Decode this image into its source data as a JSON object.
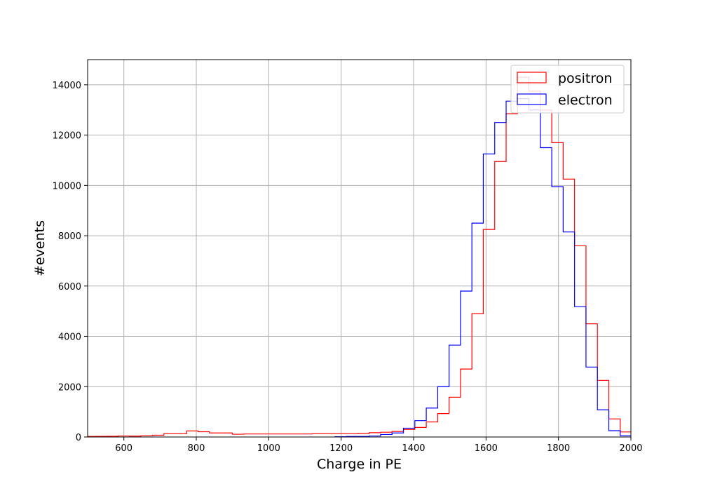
{
  "chart_data": {
    "type": "histogram",
    "title": "",
    "xlabel": "Charge in PE",
    "ylabel": "#events",
    "xlim": [
      500,
      2000
    ],
    "ylim": [
      0,
      15000
    ],
    "grid": true,
    "legend_position": "top-right",
    "x_ticks": [
      600,
      800,
      1000,
      1200,
      1400,
      1600,
      1800,
      2000
    ],
    "y_ticks": [
      0,
      2000,
      4000,
      6000,
      8000,
      10000,
      12000,
      14000
    ],
    "bin_width": 31.5,
    "series": [
      {
        "name": "positron",
        "color": "#ff0000",
        "bin_start": 490,
        "values": [
          20,
          25,
          30,
          40,
          35,
          50,
          70,
          130,
          130,
          240,
          210,
          160,
          160,
          110,
          120,
          120,
          120,
          120,
          120,
          120,
          130,
          130,
          130,
          130,
          140,
          170,
          190,
          220,
          300,
          380,
          600,
          930,
          1580,
          2700,
          4900,
          8250,
          10950,
          12850,
          14300,
          13750,
          13000,
          11700,
          10250,
          7600,
          4500,
          2250,
          720,
          200,
          20,
          0
        ]
      },
      {
        "name": "electron",
        "color": "#0000ff",
        "bin_start": 1183,
        "values": [
          10,
          20,
          20,
          40,
          100,
          160,
          350,
          650,
          1150,
          2000,
          3650,
          5800,
          8500,
          11250,
          12500,
          13350,
          13450,
          13000,
          11500,
          9950,
          8150,
          5180,
          2780,
          1080,
          250,
          50,
          0
        ]
      }
    ]
  }
}
